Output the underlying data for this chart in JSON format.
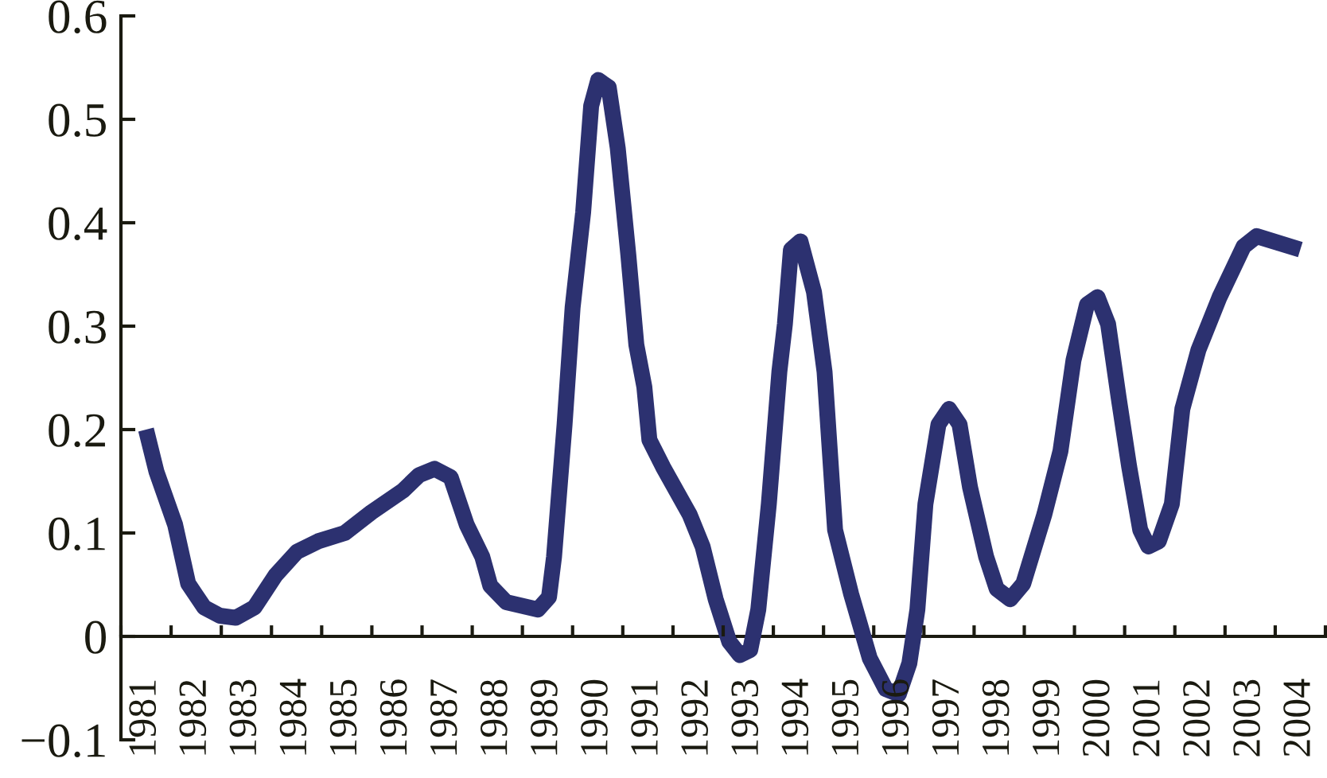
{
  "chart_data": {
    "type": "line",
    "x": [
      1981.0,
      1981.21,
      1981.58,
      1981.84,
      1982.16,
      1982.47,
      1982.79,
      1983.16,
      1983.58,
      1984.01,
      1984.43,
      1984.96,
      1985.49,
      1986.12,
      1986.44,
      1986.75,
      1987.07,
      1987.39,
      1987.7,
      1987.86,
      1988.18,
      1988.81,
      1989.03,
      1989.13,
      1989.34,
      1989.5,
      1989.71,
      1989.87,
      1990.01,
      1990.22,
      1990.4,
      1990.61,
      1990.77,
      1990.93,
      1991.03,
      1991.3,
      1991.83,
      1992.09,
      1992.35,
      1992.62,
      1992.83,
      1993.04,
      1993.2,
      1993.41,
      1993.62,
      1993.73,
      1993.85,
      1994.04,
      1994.31,
      1994.52,
      1994.73,
      1995.05,
      1995.42,
      1995.74,
      1996.0,
      1996.21,
      1996.37,
      1996.53,
      1996.79,
      1997.0,
      1997.21,
      1997.42,
      1997.74,
      1997.95,
      1998.22,
      1998.48,
      1998.9,
      1999.22,
      1999.48,
      1999.75,
      1999.96,
      2000.17,
      2000.38,
      2000.59,
      2000.81,
      2000.97,
      2001.18,
      2001.44,
      2001.65,
      2001.97,
      2002.39,
      2002.87,
      2003.13,
      2004.0
    ],
    "series": [
      {
        "color": "#2c3170",
        "values": [
          0.2,
          0.159,
          0.108,
          0.051,
          0.028,
          0.02,
          0.018,
          0.028,
          0.059,
          0.082,
          0.092,
          0.1,
          0.12,
          0.141,
          0.156,
          0.162,
          0.154,
          0.108,
          0.077,
          0.049,
          0.033,
          0.026,
          0.038,
          0.077,
          0.205,
          0.318,
          0.41,
          0.513,
          0.538,
          0.531,
          0.472,
          0.369,
          0.282,
          0.241,
          0.19,
          0.164,
          0.118,
          0.087,
          0.036,
          -0.005,
          -0.018,
          -0.013,
          0.026,
          0.128,
          0.256,
          0.302,
          0.374,
          0.382,
          0.333,
          0.256,
          0.103,
          0.041,
          -0.021,
          -0.051,
          -0.056,
          -0.026,
          0.026,
          0.128,
          0.205,
          0.22,
          0.205,
          0.144,
          0.077,
          0.046,
          0.036,
          0.051,
          0.118,
          0.179,
          0.267,
          0.321,
          0.328,
          0.302,
          0.231,
          0.164,
          0.103,
          0.087,
          0.092,
          0.128,
          0.22,
          0.277,
          0.328,
          0.377,
          0.387,
          0.374
        ]
      }
    ],
    "xlim": [
      1980.5,
      2004.5
    ],
    "xticks": [
      {
        "value": 1980.5,
        "label": null
      },
      1981,
      {
        "value": 1981.5,
        "label": null
      },
      1982,
      {
        "value": 1982.5,
        "label": null
      },
      1983,
      {
        "value": 1983.5,
        "label": null
      },
      1984,
      {
        "value": 1984.5,
        "label": null
      },
      1985,
      {
        "value": 1985.5,
        "label": null
      },
      1986,
      {
        "value": 1986.5,
        "label": null
      },
      1987,
      {
        "value": 1987.5,
        "label": null
      },
      1988,
      {
        "value": 1988.5,
        "label": null
      },
      1989,
      {
        "value": 1989.5,
        "label": null
      },
      1990,
      {
        "value": 1990.5,
        "label": null
      },
      1991,
      {
        "value": 1991.5,
        "label": null
      },
      1992,
      {
        "value": 1992.5,
        "label": null
      },
      1993,
      {
        "value": 1993.5,
        "label": null
      },
      1994,
      {
        "value": 1994.5,
        "label": null
      },
      1995,
      {
        "value": 1995.5,
        "label": null
      },
      1996,
      {
        "value": 1996.5,
        "label": null
      },
      1997,
      {
        "value": 1997.5,
        "label": null
      },
      1998,
      {
        "value": 1998.5,
        "label": null
      },
      1999,
      {
        "value": 1999.5,
        "label": null
      },
      2000,
      {
        "value": 2000.5,
        "label": null
      },
      2001,
      {
        "value": 2001.5,
        "label": null
      },
      2002,
      {
        "value": 2002.5,
        "label": null
      },
      2003,
      {
        "value": 2003.5,
        "label": null
      },
      2004,
      {
        "value": 2004.5,
        "label": null
      }
    ],
    "ylim": [
      -0.1,
      0.6
    ],
    "yticks": [
      {
        "value": -0.1,
        "label": "−0.1"
      },
      0,
      0.1,
      0.2,
      0.3,
      0.4,
      0.5,
      0.6
    ],
    "grid": false,
    "marker": "none",
    "line_style": "solid"
  }
}
